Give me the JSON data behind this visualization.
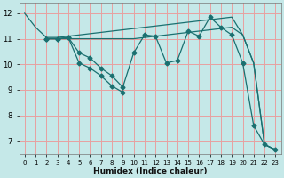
{
  "xlabel": "Humidex (Indice chaleur)",
  "bg_color": "#c5e8e8",
  "grid_color": "#e8a0a0",
  "line_color": "#1a7070",
  "xlim": [
    -0.5,
    23.5
  ],
  "ylim": [
    6.5,
    12.4
  ],
  "xticks": [
    0,
    1,
    2,
    3,
    4,
    5,
    6,
    7,
    8,
    9,
    10,
    11,
    12,
    13,
    14,
    15,
    16,
    17,
    18,
    19,
    20,
    21,
    22,
    23
  ],
  "yticks": [
    7,
    8,
    9,
    10,
    11,
    12
  ],
  "line1_x": [
    0,
    1,
    2,
    3,
    4,
    5,
    6,
    7,
    8,
    9,
    10,
    11,
    12,
    13,
    14,
    15,
    16,
    17,
    18,
    19,
    20,
    21,
    22,
    23
  ],
  "line1_y": [
    12.0,
    11.45,
    11.05,
    11.05,
    11.1,
    11.15,
    11.2,
    11.25,
    11.3,
    11.35,
    11.4,
    11.45,
    11.5,
    11.55,
    11.6,
    11.65,
    11.7,
    11.75,
    11.8,
    11.85,
    11.15,
    10.05,
    6.85,
    6.65
  ],
  "line2_x": [
    2,
    3,
    4,
    5,
    6,
    7,
    8,
    9,
    10,
    11,
    12,
    13,
    14,
    15,
    16,
    17,
    18,
    19,
    20,
    21,
    22,
    23
  ],
  "line2_y": [
    11.0,
    11.0,
    11.0,
    11.0,
    11.0,
    11.0,
    11.0,
    11.0,
    11.0,
    11.05,
    11.1,
    11.15,
    11.2,
    11.25,
    11.3,
    11.35,
    11.4,
    11.45,
    11.15,
    10.05,
    6.85,
    6.65
  ],
  "line3_x": [
    2,
    3,
    4,
    5,
    6,
    7,
    8,
    9,
    10,
    11,
    12,
    13,
    14,
    15,
    16,
    17,
    18,
    19,
    20,
    21,
    22,
    23
  ],
  "line3_y": [
    11.0,
    11.0,
    11.05,
    10.45,
    10.25,
    9.85,
    9.55,
    9.1,
    10.45,
    11.15,
    11.1,
    10.05,
    10.15,
    11.3,
    11.1,
    11.85,
    11.45,
    11.15,
    10.05,
    7.6,
    6.85,
    6.65
  ],
  "line4_x": [
    2,
    3,
    4,
    5,
    6,
    7,
    8,
    9
  ],
  "line4_y": [
    11.0,
    11.0,
    11.05,
    10.05,
    9.85,
    9.55,
    9.15,
    8.9
  ]
}
